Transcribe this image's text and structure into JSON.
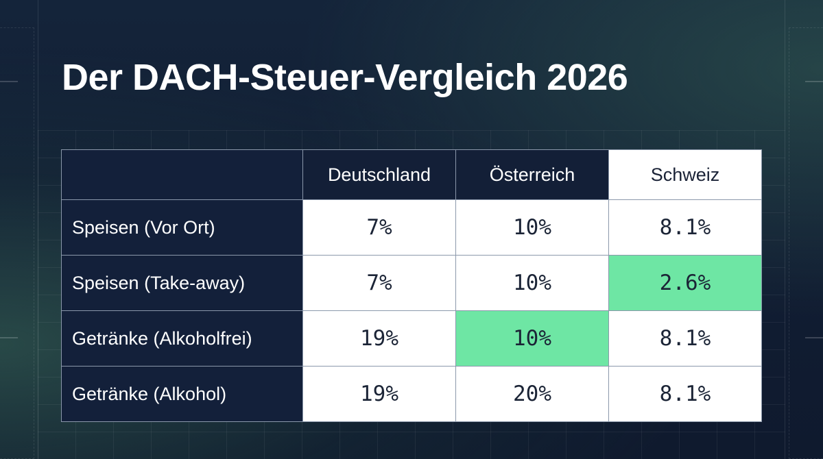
{
  "title": "Der DACH-Steuer-Vergleich 2026",
  "table": {
    "columns": [
      "Deutschland",
      "Österreich",
      "Schweiz"
    ],
    "rows": [
      {
        "label": "Speisen (Vor Ort)",
        "values": [
          "7%",
          "10%",
          "8.1%"
        ]
      },
      {
        "label": "Speisen (Take-away)",
        "values": [
          "7%",
          "10%",
          "2.6%"
        ]
      },
      {
        "label": "Getränke (Alkoholfrei)",
        "values": [
          "19%",
          "10%",
          "8.1%"
        ]
      },
      {
        "label": "Getränke (Alkohol)",
        "values": [
          "19%",
          "20%",
          "8.1%"
        ]
      }
    ],
    "highlighted_cells": [
      {
        "row": "Speisen (Take-away)",
        "column": "Schweiz"
      },
      {
        "row": "Getränke (Alkoholfrei)",
        "column": "Österreich"
      }
    ]
  },
  "colors": {
    "background": "#111d33",
    "highlight": "#6ee6a4",
    "cell_background": "#ffffff",
    "grid_line": "#8b98ab"
  }
}
